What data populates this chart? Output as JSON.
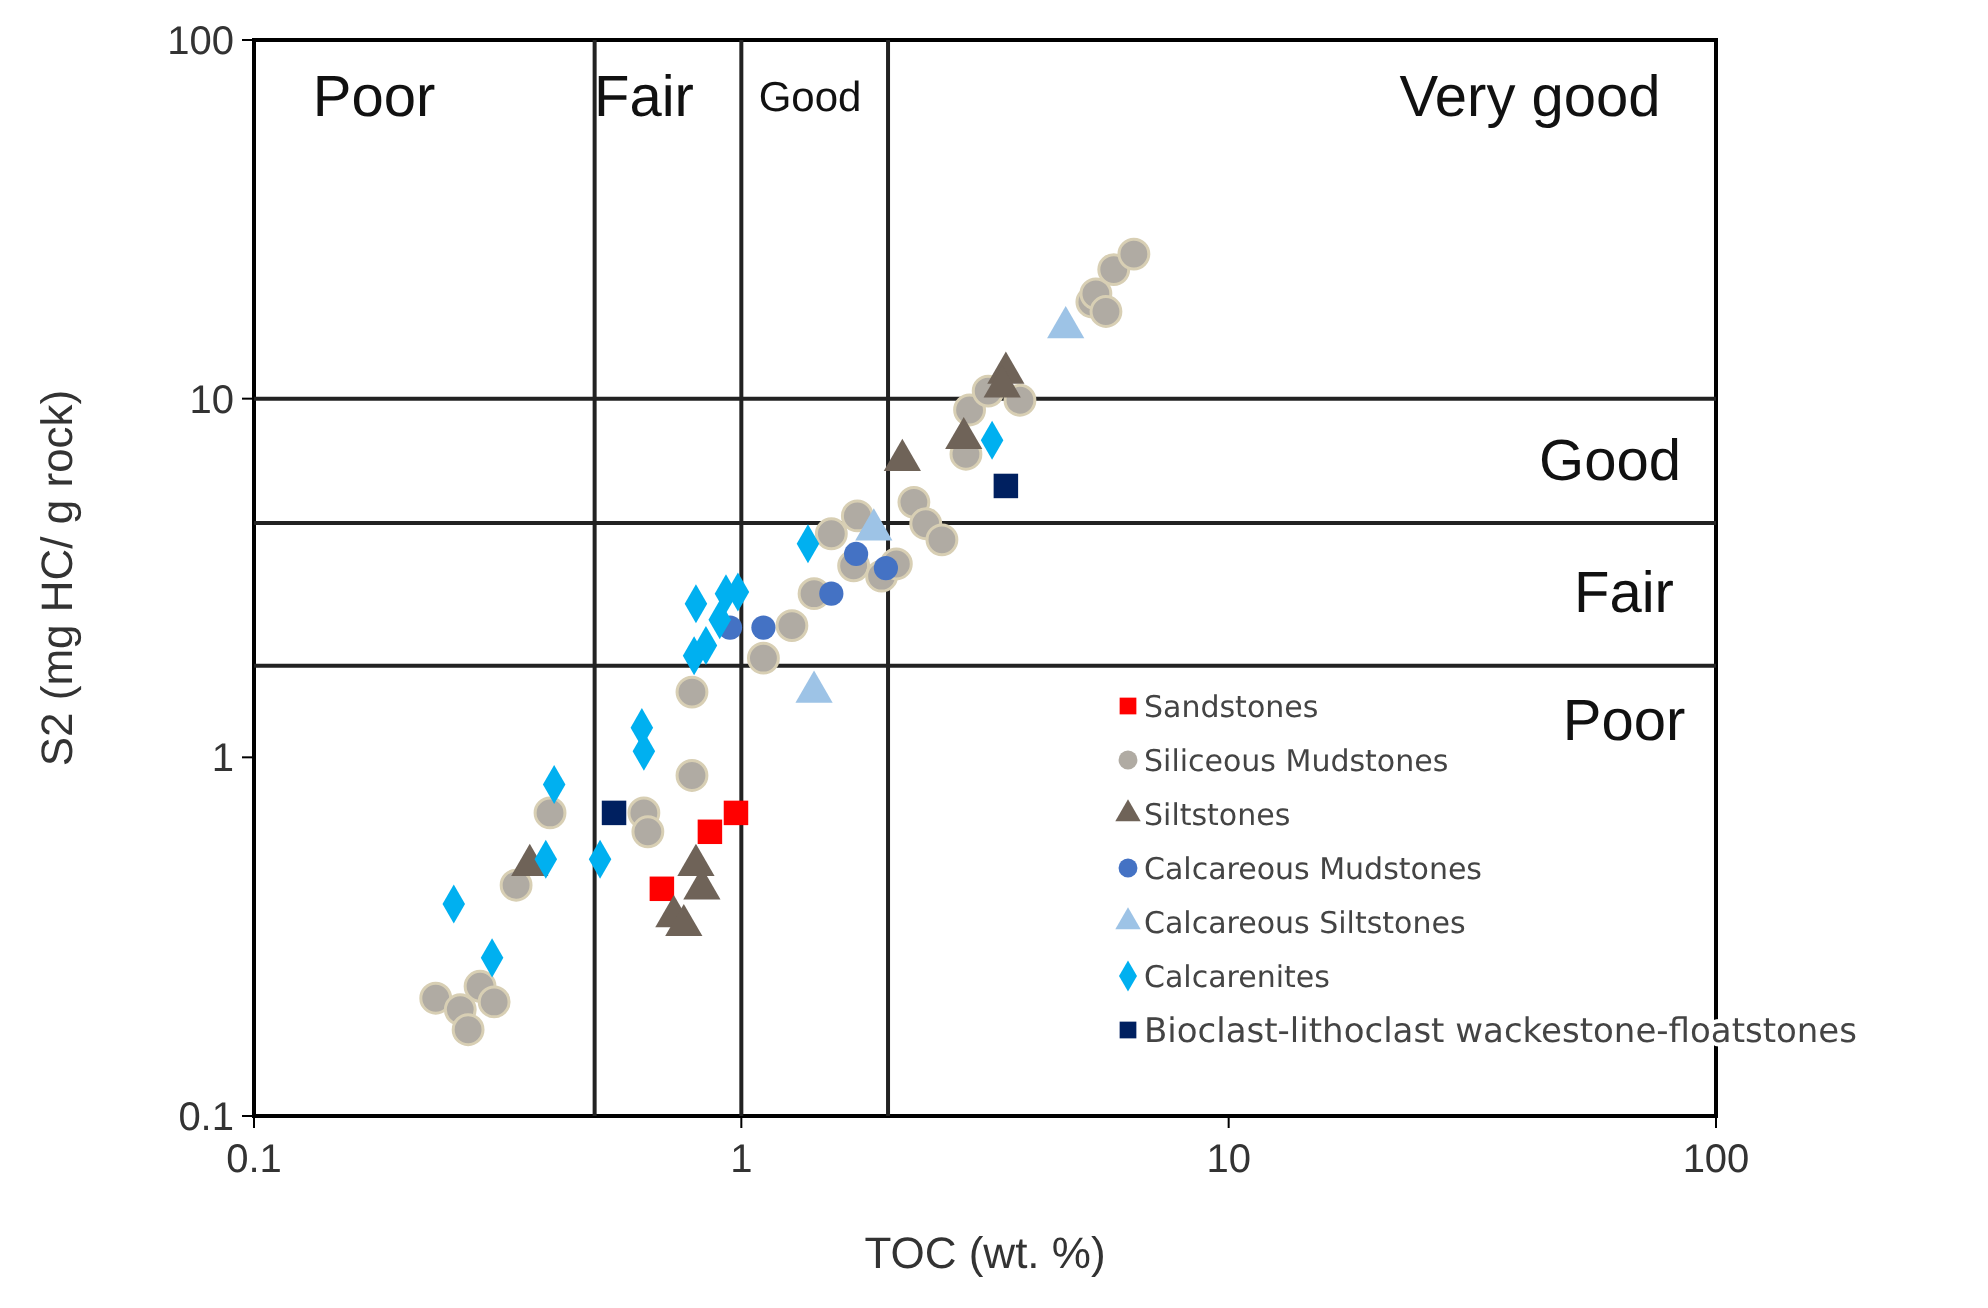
{
  "chart_data": {
    "type": "scatter",
    "xlabel": "TOC (wt. %)",
    "ylabel": "S2 (mg HC/ g rock)",
    "log": "xy",
    "xlim": [
      0.1,
      100
    ],
    "ylim": [
      0.1,
      100
    ],
    "xticks": [
      0.1,
      1,
      10,
      100
    ],
    "yticks": [
      0.1,
      1,
      10,
      100
    ],
    "grid": false,
    "legend": "bottom right",
    "series": [
      {
        "name": "Sandstones",
        "color": "#ff0000",
        "marker": "square",
        "x": [
          0.687,
          0.862,
          0.975
        ],
        "values": [
          0.43,
          0.62,
          0.7
        ]
      },
      {
        "name": "Siliceous Mudstones",
        "color": "#b0aba3",
        "marker": "circle",
        "x": [
          0.236,
          0.265,
          0.275,
          0.291,
          0.311,
          0.345,
          0.405,
          0.631,
          0.643,
          0.792,
          0.792,
          1.11,
          1.27,
          1.41,
          1.53,
          1.73,
          1.7,
          1.94,
          2.08,
          2.26,
          2.39,
          2.58,
          2.89,
          2.94,
          3.21,
          3.73,
          5.24,
          5.34,
          5.6,
          5.81,
          6.39
        ],
        "values": [
          0.213,
          0.198,
          0.174,
          0.23,
          0.208,
          0.44,
          0.7,
          0.7,
          0.62,
          0.89,
          1.52,
          1.89,
          2.33,
          2.86,
          4.2,
          4.71,
          3.42,
          3.2,
          3.46,
          5.14,
          4.48,
          4.04,
          7.0,
          9.3,
          10.5,
          9.9,
          18.6,
          19.6,
          17.5,
          22.9,
          25.3
        ]
      },
      {
        "name": "Siltstones",
        "color": "#6f6358",
        "marker": "triangle",
        "x": [
          0.368,
          0.807,
          0.83,
          0.727,
          0.762,
          2.14,
          2.86,
          3.49,
          3.43
        ],
        "values": [
          0.5,
          0.5,
          0.43,
          0.36,
          0.34,
          6.73,
          7.75,
          11.8,
          10.8
        ]
      },
      {
        "name": "Calcareous Mudstones",
        "color": "#4472c4",
        "marker": "circle",
        "x": [
          0.948,
          1.11,
          1.53,
          1.72,
          1.98
        ],
        "values": [
          2.3,
          2.3,
          2.86,
          3.69,
          3.37
        ]
      },
      {
        "name": "Calcareous Siltstones",
        "color": "#9dc3e6",
        "marker": "triangle",
        "x": [
          1.41,
          1.87,
          4.63
        ],
        "values": [
          1.52,
          4.31,
          15.8
        ]
      },
      {
        "name": "Calcarenites",
        "color": "#00b0f0",
        "marker": "diamond",
        "x": [
          0.8,
          0.846,
          0.807,
          0.93,
          0.984,
          0.903,
          1.37,
          3.27,
          0.625,
          0.631,
          0.413,
          0.397,
          0.513,
          0.257,
          0.308
        ],
        "values": [
          1.92,
          2.05,
          2.68,
          2.86,
          2.89,
          2.42,
          3.94,
          7.66,
          1.21,
          1.04,
          0.84,
          0.52,
          0.52,
          0.39,
          0.276
        ]
      },
      {
        "name": "Bioclast-lithoclast wackestone-floatstones",
        "color": "#002060",
        "marker": "square",
        "x": [
          0.548,
          3.49
        ],
        "values": [
          0.7,
          5.71
        ]
      }
    ],
    "ref_lines": [
      {
        "axis": "x",
        "value": 0.5
      },
      {
        "axis": "x",
        "value": 1
      },
      {
        "axis": "x",
        "value": 2
      },
      {
        "axis": "y",
        "value": 1.8
      },
      {
        "axis": "y",
        "value": 4.5
      },
      {
        "axis": "y",
        "value": 10
      }
    ],
    "annotations": [
      "Poor",
      "Fair",
      "Good",
      "Very good",
      "Good",
      "Fair",
      "Poor"
    ]
  }
}
